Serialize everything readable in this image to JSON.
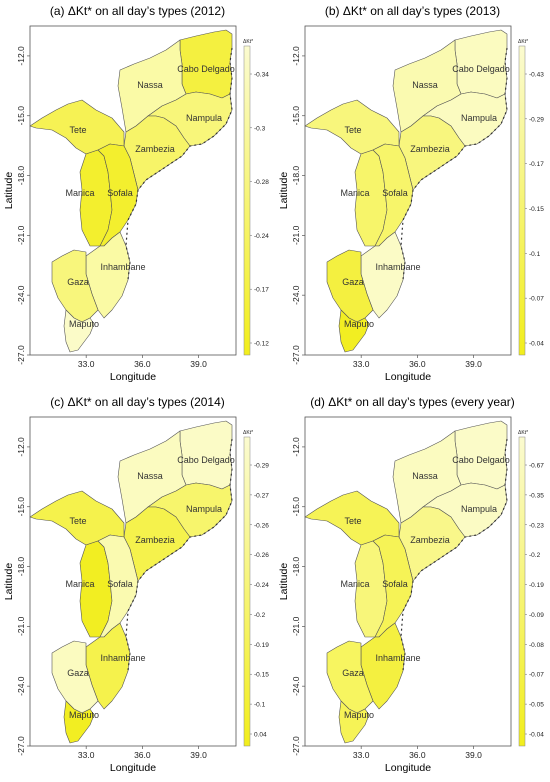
{
  "figure": {
    "x_ticks": [
      "33.0",
      "36.0",
      "39.0"
    ],
    "y_ticks": [
      "-12.0",
      "-15.0",
      "-18.0",
      "-21.0",
      "-24.0",
      "-27.0"
    ],
    "xlabel": "Longitude",
    "ylabel": "Latitude",
    "colorbar_title": "ΔKt*"
  },
  "provinces": [
    "Cabo Delgado",
    "Nassa",
    "Nampula",
    "Zambezia",
    "Tete",
    "Manica",
    "Sofala",
    "Inhambane",
    "Gaza",
    "Maputo"
  ],
  "panels": [
    {
      "title": "(a) ΔKt* on all day’s types (2012)",
      "colorbar_ticks": [
        "-0.34",
        "-0.3",
        "-0.28",
        "-0.24",
        "-0.17",
        "-0.12"
      ],
      "province_colors": {
        "Cabo Delgado": "#f4f040",
        "Nassa": "#fafaa6",
        "Nampula": "#f8f67a",
        "Zambezia": "#f7f468",
        "Tete": "#f6f254",
        "Manica": "#f3ef2e",
        "Sofala": "#f3ef2e",
        "Inhambane": "#fafaa4",
        "Gaza": "#f8f67c",
        "Maputo": "#fbfbc8"
      }
    },
    {
      "title": "(b) ΔKt* on all day’s types (2013)",
      "colorbar_ticks": [
        "-0.43",
        "-0.29",
        "-0.17",
        "-0.15",
        "-0.1",
        "-0.07",
        "-0.04"
      ],
      "province_colors": {
        "Cabo Delgado": "#fbfbc0",
        "Nassa": "#fafab0",
        "Nampula": "#fbfbc0",
        "Zambezia": "#f8f67e",
        "Tete": "#f8f67c",
        "Manica": "#f7f56a",
        "Sofala": "#f7f56a",
        "Inhambane": "#fbfbc6",
        "Gaza": "#f4f040",
        "Maputo": "#f2ee22"
      }
    },
    {
      "title": "(c) ΔKt* on all day’s types (2014)",
      "colorbar_ticks": [
        "-0.29",
        "-0.27",
        "-0.26",
        "-0.26",
        "-0.24",
        "-0.2",
        "-0.19",
        "-0.15",
        "-0.1",
        "0.04"
      ],
      "province_colors": {
        "Cabo Delgado": "#fbfbc6",
        "Nassa": "#fbfbc0",
        "Nampula": "#f7f56c",
        "Zambezia": "#f5f24c",
        "Tete": "#f5f24c",
        "Manica": "#f2ee22",
        "Sofala": "#fafab0",
        "Inhambane": "#f5f24c",
        "Gaza": "#fbfbc0",
        "Maputo": "#f2ee22"
      }
    },
    {
      "title": "(d) ΔKt* on all day’s types (every year)",
      "colorbar_ticks": [
        "-0.67",
        "-0.35",
        "-0.23",
        "-0.2",
        "-0.19",
        "-0.09",
        "-0.08",
        "-0.07",
        "-0.05",
        "-0.04"
      ],
      "province_colors": {
        "Cabo Delgado": "#fbfbc8",
        "Nassa": "#fbfbc0",
        "Nampula": "#fbfbc4",
        "Zambezia": "#f9f78a",
        "Tete": "#f6f356",
        "Manica": "#f8f67a",
        "Sofala": "#f6f356",
        "Inhambane": "#f4f040",
        "Gaza": "#f7f560",
        "Maputo": "#f6f356"
      }
    }
  ]
}
